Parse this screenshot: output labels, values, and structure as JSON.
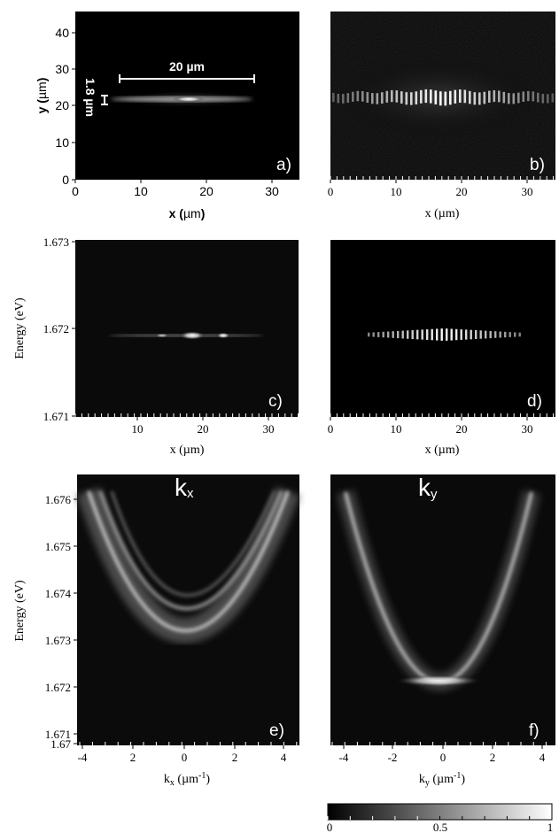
{
  "panels": {
    "a": {
      "letter": "a)",
      "xlabel_base": "x (",
      "xlabel_unit": "µm",
      "xlabel_close": ")",
      "ylabel_base": "y (",
      "ylabel_unit": "µm",
      "ylabel_close": ")",
      "xticks": [
        "0",
        "10",
        "20",
        "30"
      ],
      "yticks": [
        "0",
        "10",
        "20",
        "30",
        "40"
      ],
      "scale_bar_label": "20 µm",
      "height_label": "1.8 µm"
    },
    "b": {
      "letter": "b)",
      "xlabel": "x (µm)",
      "xticks": [
        "0",
        "10",
        "20",
        "30"
      ]
    },
    "c": {
      "letter": "c)",
      "xlabel": "x (µm)",
      "ylabel": "Energy (eV)",
      "xticks": [
        "10",
        "20",
        "30"
      ],
      "yticks": [
        "1.673",
        "1.672",
        "1.671"
      ]
    },
    "d": {
      "letter": "d)",
      "xlabel": "x (µm)",
      "xticks": [
        "0",
        "10",
        "20",
        "30"
      ]
    },
    "e": {
      "letter": "e)",
      "corner_label": "k",
      "corner_sub": "x",
      "xlabel_base": "k",
      "xlabel_sub": "x",
      "xlabel_unit": " (µm",
      "xlabel_sup": "-1",
      "xlabel_close": ")",
      "ylabel": "Energy (eV)",
      "xticks": [
        "-4",
        "2",
        "0",
        "2",
        "4"
      ],
      "yticks": [
        "1.676",
        "1.675",
        "1.674",
        "1.673",
        "1.672",
        "1.671",
        "1.67"
      ]
    },
    "f": {
      "letter": "f)",
      "corner_label": "k",
      "corner_sub": "y",
      "xlabel_base": "k",
      "xlabel_sub": "y",
      "xlabel_unit": " (µm",
      "xlabel_sup": "-1",
      "xlabel_close": ")",
      "xticks": [
        "-4",
        "-2",
        "0",
        "2",
        "4"
      ]
    }
  },
  "colorbar": {
    "ticks": [
      "0",
      "0.5",
      "1"
    ]
  }
}
